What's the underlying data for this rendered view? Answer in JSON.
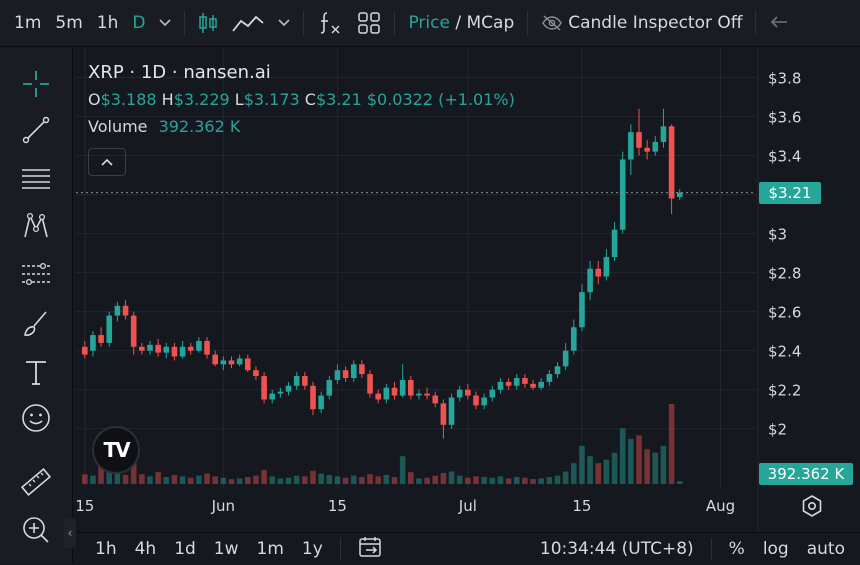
{
  "toolbar": {
    "intervals": [
      "1m",
      "5m",
      "1h",
      "D"
    ],
    "active_interval": "D",
    "price_label": "Price",
    "divider": "/",
    "mcap_label": "MCap",
    "inspector_label": "Candle Inspector Off"
  },
  "legend": {
    "title": "XRP · 1D · nansen.ai",
    "o_label": "O",
    "o_value": "$3.188",
    "h_label": "H",
    "h_value": "$3.229",
    "l_label": "L",
    "l_value": "$3.173",
    "c_label": "C",
    "c_value": "$3.21",
    "change": "$0.0322 (+1.01%)",
    "volume_label": "Volume",
    "volume_value": "392.362 K"
  },
  "logo_text": "TV",
  "price_tag": "$3.21",
  "volume_tag": "392.362 K",
  "bottom": {
    "ranges": [
      "1h",
      "4h",
      "1d",
      "1w",
      "1m",
      "1y"
    ],
    "clock": "10:34:44 (UTC+8)",
    "percent": "%",
    "log": "log",
    "auto": "auto"
  },
  "colors": {
    "up": "#26a69a",
    "down": "#ef5350",
    "background": "#15181f"
  },
  "icons": [
    "crosshair-icon",
    "trendline-icon",
    "horizontal-lines-icon",
    "pattern-icon",
    "fib-icon",
    "brush-icon",
    "text-icon",
    "emoji-icon",
    "ruler-icon",
    "zoom-in-icon",
    "settings-icon",
    "date-range-icon",
    "indicators-icon",
    "candlestick-icon",
    "line-chart-icon",
    "grid-icon",
    "eye-off-icon",
    "undo-icon"
  ],
  "chart_data": {
    "type": "candlestick",
    "y_ticks": [
      "$3.8",
      "$3.6",
      "$3.4",
      "$3.2",
      "$3",
      "$2.8",
      "$2.6",
      "$2.4",
      "$2.2",
      "$2"
    ],
    "ylim": [
      1.85,
      3.9
    ],
    "x_ticks": [
      {
        "label": "15",
        "day": 0
      },
      {
        "label": "Jun",
        "day": 17
      },
      {
        "label": "15",
        "day": 31
      },
      {
        "label": "Jul",
        "day": 47
      },
      {
        "label": "15",
        "day": 61
      },
      {
        "label": "Aug",
        "day": 78
      }
    ],
    "current_price": 3.21,
    "series": [
      [
        2.42,
        2.38,
        2.45,
        2.36,
        28
      ],
      [
        2.4,
        2.48,
        2.5,
        2.37,
        24
      ],
      [
        2.48,
        2.44,
        2.52,
        2.42,
        120
      ],
      [
        2.44,
        2.58,
        2.6,
        2.42,
        40
      ],
      [
        2.58,
        2.63,
        2.65,
        2.55,
        30
      ],
      [
        2.63,
        2.58,
        2.66,
        2.56,
        26
      ],
      [
        2.58,
        2.42,
        2.6,
        2.38,
        70
      ],
      [
        2.42,
        2.4,
        2.44,
        2.38,
        28
      ],
      [
        2.4,
        2.43,
        2.45,
        2.38,
        22
      ],
      [
        2.43,
        2.39,
        2.46,
        2.37,
        34
      ],
      [
        2.39,
        2.42,
        2.44,
        2.36,
        20
      ],
      [
        2.42,
        2.37,
        2.44,
        2.35,
        26
      ],
      [
        2.37,
        2.42,
        2.45,
        2.36,
        22
      ],
      [
        2.42,
        2.4,
        2.44,
        2.38,
        18
      ],
      [
        2.4,
        2.45,
        2.47,
        2.39,
        24
      ],
      [
        2.45,
        2.38,
        2.47,
        2.36,
        30
      ],
      [
        2.38,
        2.33,
        2.4,
        2.32,
        22
      ],
      [
        2.33,
        2.35,
        2.37,
        2.3,
        18
      ],
      [
        2.35,
        2.33,
        2.37,
        2.31,
        14
      ],
      [
        2.33,
        2.36,
        2.38,
        2.32,
        16
      ],
      [
        2.36,
        2.3,
        2.38,
        2.29,
        20
      ],
      [
        2.3,
        2.27,
        2.32,
        2.25,
        24
      ],
      [
        2.27,
        2.15,
        2.29,
        2.13,
        40
      ],
      [
        2.15,
        2.18,
        2.2,
        2.13,
        22
      ],
      [
        2.18,
        2.19,
        2.21,
        2.16,
        16
      ],
      [
        2.19,
        2.22,
        2.24,
        2.17,
        18
      ],
      [
        2.22,
        2.27,
        2.29,
        2.2,
        24
      ],
      [
        2.27,
        2.22,
        2.29,
        2.2,
        22
      ],
      [
        2.22,
        2.1,
        2.24,
        2.07,
        38
      ],
      [
        2.1,
        2.17,
        2.19,
        2.08,
        30
      ],
      [
        2.17,
        2.25,
        2.27,
        2.15,
        26
      ],
      [
        2.25,
        2.3,
        2.33,
        2.23,
        22
      ],
      [
        2.3,
        2.26,
        2.32,
        2.24,
        18
      ],
      [
        2.26,
        2.33,
        2.35,
        2.24,
        24
      ],
      [
        2.33,
        2.28,
        2.35,
        2.26,
        20
      ],
      [
        2.28,
        2.18,
        2.3,
        2.16,
        28
      ],
      [
        2.18,
        2.15,
        2.2,
        2.13,
        22
      ],
      [
        2.15,
        2.21,
        2.23,
        2.13,
        26
      ],
      [
        2.21,
        2.17,
        2.24,
        2.15,
        20
      ],
      [
        2.17,
        2.25,
        2.33,
        2.16,
        80
      ],
      [
        2.25,
        2.17,
        2.27,
        2.15,
        34
      ],
      [
        2.17,
        2.18,
        2.2,
        2.15,
        16
      ],
      [
        2.18,
        2.17,
        2.21,
        2.15,
        18
      ],
      [
        2.17,
        2.13,
        2.19,
        2.11,
        24
      ],
      [
        2.13,
        2.02,
        2.15,
        1.95,
        32
      ],
      [
        2.02,
        2.16,
        2.18,
        2.0,
        36
      ],
      [
        2.16,
        2.2,
        2.22,
        2.14,
        24
      ],
      [
        2.2,
        2.17,
        2.23,
        2.15,
        18
      ],
      [
        2.17,
        2.12,
        2.19,
        2.1,
        22
      ],
      [
        2.12,
        2.16,
        2.18,
        2.1,
        20
      ],
      [
        2.16,
        2.2,
        2.22,
        2.14,
        18
      ],
      [
        2.2,
        2.24,
        2.26,
        2.18,
        22
      ],
      [
        2.24,
        2.22,
        2.26,
        2.2,
        16
      ],
      [
        2.22,
        2.26,
        2.28,
        2.2,
        20
      ],
      [
        2.26,
        2.23,
        2.28,
        2.21,
        18
      ],
      [
        2.23,
        2.21,
        2.25,
        2.2,
        14
      ],
      [
        2.21,
        2.24,
        2.26,
        2.2,
        16
      ],
      [
        2.24,
        2.28,
        2.3,
        2.22,
        20
      ],
      [
        2.28,
        2.32,
        2.34,
        2.26,
        24
      ],
      [
        2.32,
        2.4,
        2.44,
        2.3,
        36
      ],
      [
        2.4,
        2.52,
        2.56,
        2.38,
        60
      ],
      [
        2.52,
        2.7,
        2.74,
        2.5,
        110
      ],
      [
        2.7,
        2.82,
        2.86,
        2.66,
        80
      ],
      [
        2.82,
        2.78,
        2.86,
        2.74,
        60
      ],
      [
        2.78,
        2.88,
        2.92,
        2.76,
        70
      ],
      [
        2.88,
        3.02,
        3.06,
        2.86,
        90
      ],
      [
        3.02,
        3.38,
        3.42,
        3.0,
        160
      ],
      [
        3.38,
        3.52,
        3.56,
        3.3,
        130
      ],
      [
        3.52,
        3.44,
        3.64,
        3.4,
        140
      ],
      [
        3.44,
        3.42,
        3.48,
        3.38,
        100
      ],
      [
        3.42,
        3.47,
        3.5,
        3.4,
        90
      ],
      [
        3.47,
        3.55,
        3.64,
        3.44,
        110
      ],
      [
        3.55,
        3.18,
        3.56,
        3.1,
        230
      ],
      [
        3.188,
        3.21,
        3.229,
        3.173,
        8
      ]
    ]
  }
}
